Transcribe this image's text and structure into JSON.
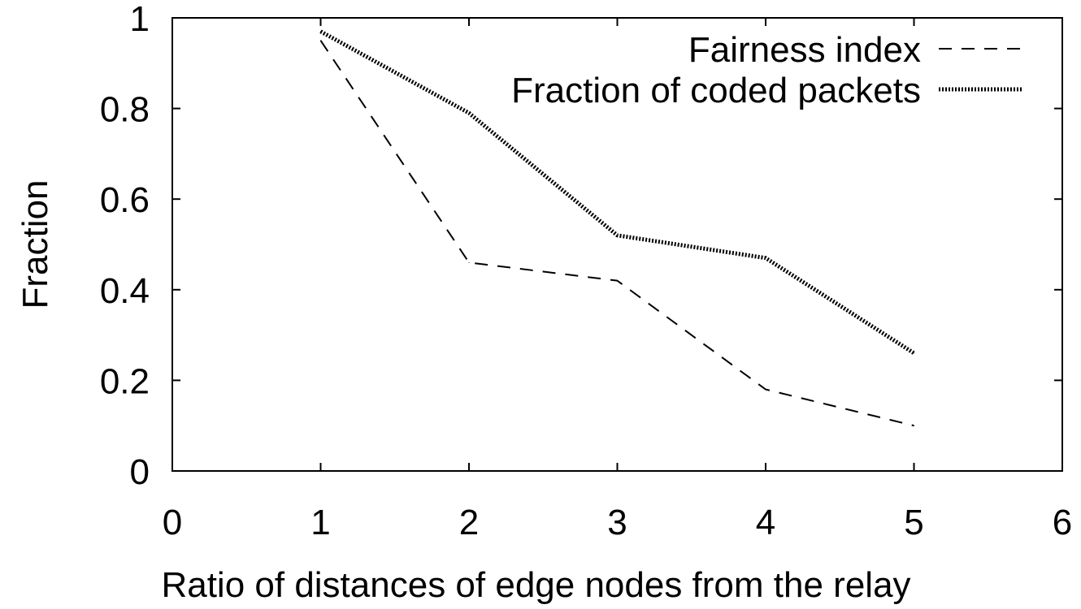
{
  "chart_data": {
    "type": "line",
    "title": "",
    "xlabel": "Ratio of distances of edge nodes from the relay",
    "ylabel": "Fraction",
    "xlim": [
      0,
      6
    ],
    "ylim": [
      0,
      1
    ],
    "xticks": [
      0,
      1,
      2,
      3,
      4,
      5,
      6
    ],
    "yticks": [
      0,
      0.2,
      0.4,
      0.6,
      0.8,
      1
    ],
    "xtick_labels": [
      "0",
      "1",
      "2",
      "3",
      "4",
      "5",
      "6"
    ],
    "ytick_labels": [
      "0",
      "0.2",
      "0.4",
      "0.6",
      "0.8",
      "1"
    ],
    "grid": false,
    "legend_position": "top-right",
    "series": [
      {
        "name": "Fairness index",
        "style": "dashed",
        "color": "#000000",
        "x": [
          1,
          2,
          3,
          4,
          5
        ],
        "values": [
          0.95,
          0.46,
          0.42,
          0.18,
          0.1
        ]
      },
      {
        "name": "Fraction of coded packets",
        "style": "dotted-thick",
        "color": "#000000",
        "x": [
          1,
          2,
          3,
          4,
          5
        ],
        "values": [
          0.97,
          0.79,
          0.52,
          0.47,
          0.26
        ]
      }
    ]
  }
}
